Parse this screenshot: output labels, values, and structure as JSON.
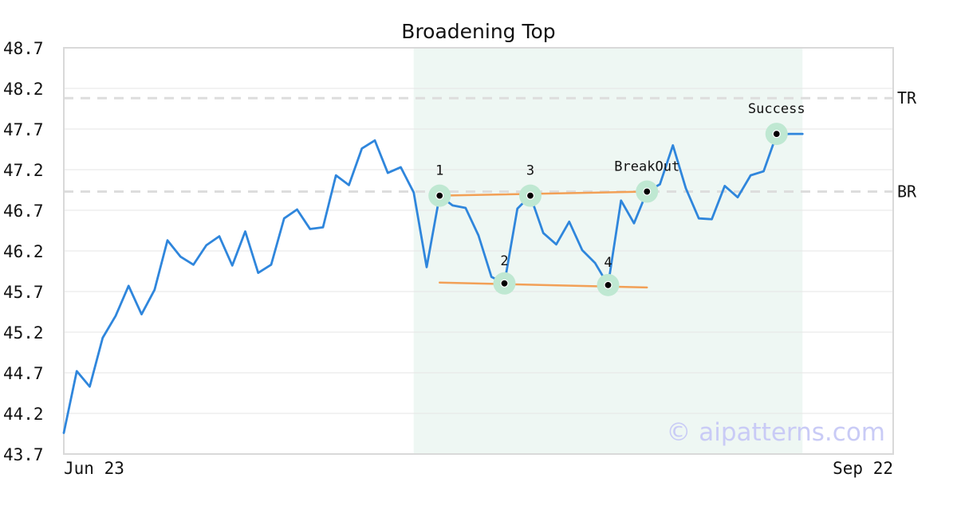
{
  "colors": {
    "price_line": "#2f86dc",
    "trend_line": "#f2a056",
    "highlight_region": "#eef7f3",
    "marker_halo": "#bfe8d2",
    "marker_dot": "#000000",
    "ref_line": "#dddddd",
    "grid": "#e5e5e5",
    "frame": "#d9d9d9",
    "watermark": "#c9cbf6"
  },
  "watermark": "© aipatterns.com",
  "chart_data": {
    "type": "line",
    "title": "Broadening Top",
    "xlabel": "",
    "ylabel": "",
    "x_range": [
      0,
      64
    ],
    "ylim": [
      43.7,
      48.7
    ],
    "y_ticks": [
      "48.7",
      "48.2",
      "47.7",
      "47.2",
      "46.7",
      "46.2",
      "45.7",
      "45.2",
      "44.7",
      "44.2",
      "43.7"
    ],
    "x_ticks": [
      {
        "x": 0,
        "label": "Jun 23"
      },
      {
        "x": 64,
        "label": "Sep 22"
      }
    ],
    "grid": true,
    "series": [
      {
        "values": [
          43.96,
          44.72,
          44.53,
          45.13,
          45.4,
          45.77,
          45.42,
          45.72,
          46.33,
          46.13,
          46.03,
          46.27,
          46.38,
          46.02,
          46.44,
          45.93,
          46.03,
          46.6,
          46.71,
          46.47,
          46.49,
          47.13,
          47.01,
          47.46,
          47.56,
          47.16,
          47.23,
          46.92,
          46.0,
          46.88,
          46.76,
          46.73,
          46.39,
          45.88,
          45.8,
          46.72,
          46.88,
          46.42,
          46.28,
          46.56,
          46.21,
          46.05,
          45.78,
          46.82,
          46.54,
          46.93,
          47.02,
          47.5,
          46.97,
          46.6,
          46.59,
          47.0,
          46.86,
          47.13,
          47.18,
          47.63,
          47.64,
          47.64
        ]
      }
    ],
    "highlight_region": {
      "x_start": 27,
      "x_end": 57
    },
    "reference_lines": [
      {
        "label": "TR",
        "y": 48.08
      },
      {
        "label": "BR",
        "y": 46.93
      }
    ],
    "trend_lines": [
      {
        "x1": 29,
        "y1": 46.88,
        "x2": 45,
        "y2": 46.93
      },
      {
        "x1": 29,
        "y1": 45.81,
        "x2": 45,
        "y2": 45.75
      }
    ],
    "markers": [
      {
        "label": "1",
        "x": 29,
        "y": 46.88
      },
      {
        "label": "2",
        "x": 34,
        "y": 45.8
      },
      {
        "label": "3",
        "x": 36,
        "y": 46.88
      },
      {
        "label": "4",
        "x": 42,
        "y": 45.78
      },
      {
        "label": "BreakOut",
        "x": 45,
        "y": 46.93
      },
      {
        "label": "Success",
        "x": 55,
        "y": 47.64
      }
    ]
  }
}
